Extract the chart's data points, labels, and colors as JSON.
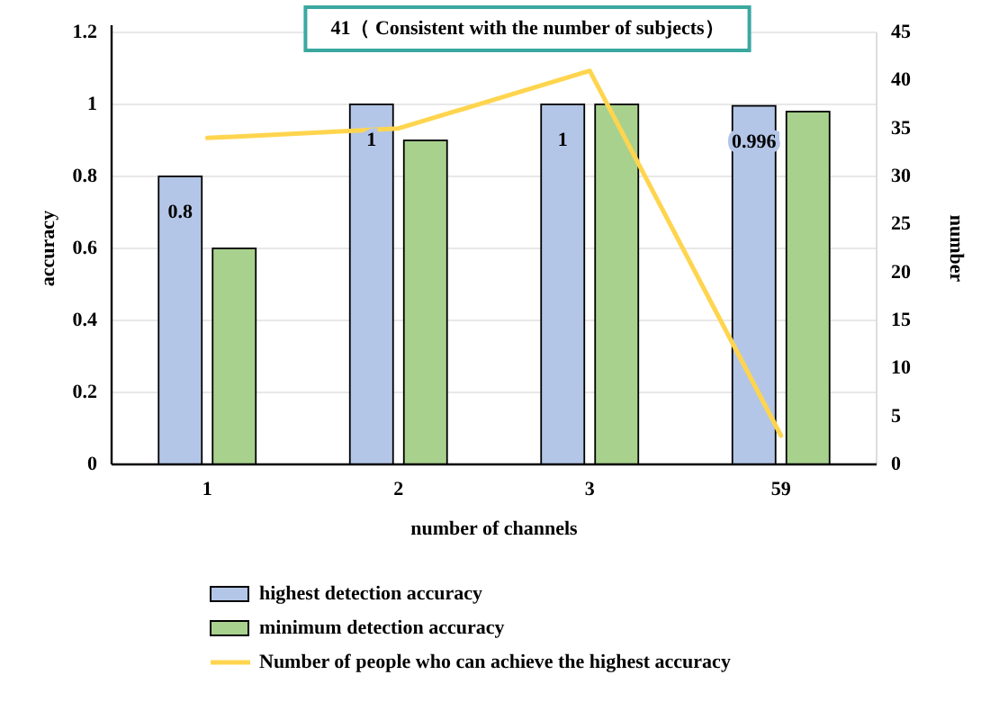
{
  "chart_data": {
    "type": "bar",
    "xlabel": "number of channels",
    "ylabel": "accuracy",
    "y2label": "number",
    "categories": [
      "1",
      "2",
      "3",
      "59"
    ],
    "series": [
      {
        "name": "highest detection accuracy",
        "color": "#b4c6e7",
        "values": [
          0.8,
          1,
          1,
          0.996
        ],
        "value_labels": [
          "0.8",
          "1",
          "1",
          "0.996"
        ]
      },
      {
        "name": "minimum detection accuracy",
        "color": "#a9d18e",
        "values": [
          0.6,
          0.9,
          1,
          0.98
        ]
      },
      {
        "name": "Number of people who can achieve the highest accuracy",
        "type": "line",
        "axis": "y2",
        "color": "#ffd54f",
        "values": [
          34,
          35,
          41,
          3
        ]
      }
    ],
    "ylim": [
      0,
      1.2
    ],
    "yticks": [
      0,
      0.2,
      0.4,
      0.6,
      0.8,
      1,
      1.2
    ],
    "y2lim": [
      0,
      45
    ],
    "y2ticks": [
      0,
      5,
      10,
      15,
      20,
      25,
      30,
      35,
      40,
      45
    ],
    "annotations": [
      "41（ Consistent with the number of subjects）"
    ],
    "grid": "y",
    "legend": "bottom",
    "marker": "none",
    "line_style": "solid"
  }
}
